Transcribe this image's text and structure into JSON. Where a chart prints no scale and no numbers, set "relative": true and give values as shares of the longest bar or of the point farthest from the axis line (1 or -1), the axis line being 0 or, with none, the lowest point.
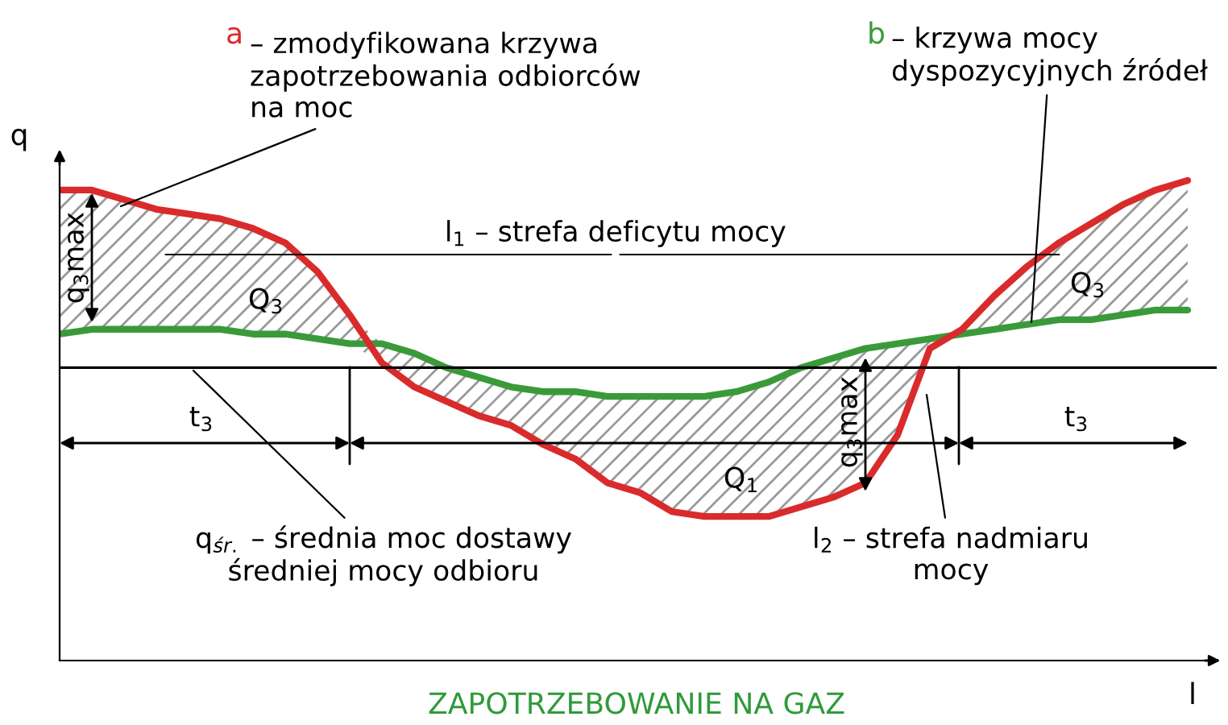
{
  "chart_data": {
    "type": "line",
    "relative": true,
    "title": "ZAPOTRZEBOWANIE NA GAZ",
    "xlabel": "l",
    "ylabel": "q",
    "legend": false,
    "categories": [
      null,
      null,
      null,
      null,
      null,
      null,
      null,
      null,
      null,
      null,
      null,
      null,
      null,
      null,
      null,
      null,
      null,
      null,
      null,
      null,
      null,
      null,
      null,
      null,
      null,
      null,
      null,
      null,
      null,
      null,
      null,
      null,
      null,
      null,
      null,
      null
    ],
    "series": [
      {
        "name": "a",
        "color": "#d92b2b",
        "values": [
          0.98,
          0.98,
          0.96,
          0.94,
          0.93,
          0.92,
          0.9,
          0.87,
          0.81,
          0.72,
          0.62,
          0.57,
          0.54,
          0.51,
          0.49,
          0.45,
          0.42,
          0.37,
          0.35,
          0.31,
          0.3,
          0.3,
          0.3,
          0.32,
          0.34,
          0.37,
          0.47,
          0.65,
          0.69,
          0.76,
          0.82,
          0.87,
          0.91,
          0.95,
          0.98,
          1.0
        ],
        "lower": [
          0.68,
          0.69,
          0.69,
          0.69,
          0.69,
          0.69,
          0.68,
          0.68,
          0.67,
          0.66,
          0.62,
          0.57,
          0.54,
          0.51,
          0.49,
          0.45,
          0.42,
          0.37,
          0.35,
          0.31,
          0.3,
          0.3,
          0.3,
          0.32,
          0.34,
          0.37,
          0.47,
          0.65,
          0.68,
          0.69,
          0.7,
          0.71,
          0.71,
          0.72,
          0.73,
          0.73
        ],
        "upper": [
          0.98,
          0.98,
          0.96,
          0.94,
          0.93,
          0.92,
          0.9,
          0.87,
          0.81,
          0.72,
          0.66,
          0.64,
          0.61,
          0.59,
          0.57,
          0.56,
          0.56,
          0.55,
          0.55,
          0.55,
          0.55,
          0.56,
          0.58,
          0.61,
          0.63,
          0.65,
          0.66,
          0.67,
          0.69,
          0.76,
          0.82,
          0.87,
          0.91,
          0.95,
          0.98,
          1.0
        ]
      },
      {
        "name": "b",
        "color": "#3a9a3a",
        "values": [
          0.68,
          0.69,
          0.69,
          0.69,
          0.69,
          0.69,
          0.68,
          0.68,
          0.67,
          0.66,
          0.66,
          0.64,
          0.61,
          0.59,
          0.57,
          0.56,
          0.56,
          0.55,
          0.55,
          0.55,
          0.55,
          0.56,
          0.58,
          0.61,
          0.63,
          0.65,
          0.66,
          0.67,
          0.68,
          0.69,
          0.7,
          0.71,
          0.71,
          0.72,
          0.73,
          0.73
        ]
      }
    ],
    "ref_lines": [
      {
        "axis": "y",
        "value": 0.61,
        "color": "#000000"
      }
    ],
    "annotations": [
      "– zmodyfikowana krzywa\nzapotrzebowania odbiorców\nna moc",
      "– krzywa mocy\ndyspozycyjnych źródeł",
      "l$_{1}$ – strefa deficytu mocy",
      "Q$_{3}$",
      "Q$_{3}$",
      "Q$_{1}$",
      "q$_{3}$max",
      "q$_{3}$max",
      "t$_{3}$",
      "t$_{3}$",
      "q$_{śr.}$ – średnia moc dostawy\nśredniej mocy odbioru",
      "l$_{2}$ – strefa nadmiaru\nmocy"
    ]
  }
}
